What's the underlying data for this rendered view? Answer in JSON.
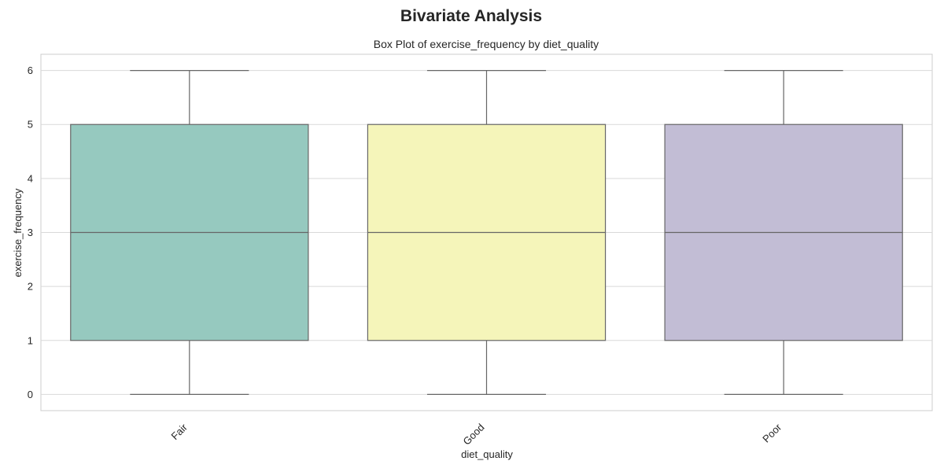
{
  "figure": {
    "suptitle": "Bivariate Analysis"
  },
  "chart_data": {
    "type": "box",
    "title": "Box Plot of exercise_frequency by diet_quality",
    "xlabel": "diet_quality",
    "ylabel": "exercise_frequency",
    "categories": [
      "Fair",
      "Good",
      "Poor"
    ],
    "y_ticks": [
      0,
      1,
      2,
      3,
      4,
      5,
      6
    ],
    "ylim": [
      -0.3,
      6.3
    ],
    "grid": true,
    "boxes": [
      {
        "category": "Fair",
        "min": 0,
        "q1": 1,
        "median": 3,
        "q3": 5,
        "max": 6,
        "color": "#96C9BF"
      },
      {
        "category": "Good",
        "min": 0,
        "q1": 1,
        "median": 3,
        "q3": 5,
        "max": 6,
        "color": "#F5F5BA"
      },
      {
        "category": "Poor",
        "min": 0,
        "q1": 1,
        "median": 3,
        "q3": 5,
        "max": 6,
        "color": "#C2BDD5"
      }
    ]
  }
}
